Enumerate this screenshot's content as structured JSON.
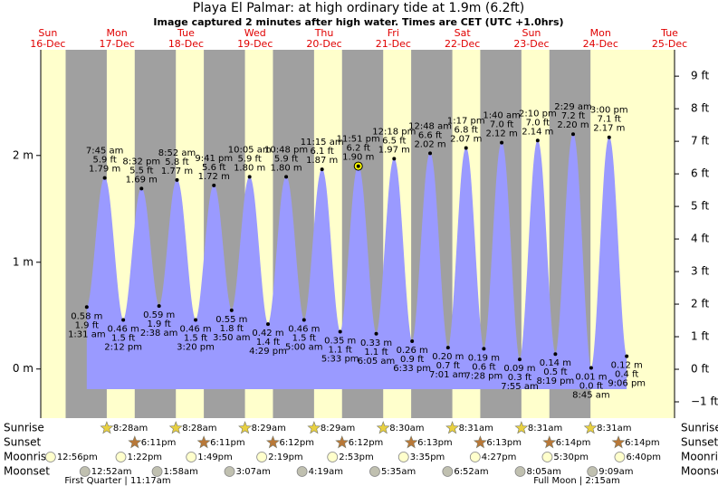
{
  "chart_data": {
    "type": "tide",
    "title": "Playa El Palmar: at high  ordinary tide at 1.9m (6.2ft)",
    "subtitle": "Image captured 2 minutes after high water. Times are CET (UTC +1.0hrs)",
    "ylim": [
      -0.46,
      2.99
    ],
    "yticks": [
      {
        "value": 0,
        "label": "0 m"
      },
      {
        "value": 1,
        "label": "1 m"
      },
      {
        "value": 2,
        "label": "2 m"
      }
    ],
    "y2lim": [
      -1.5,
      9.81
    ],
    "y2ticks": [
      {
        "value": -1,
        "label": "−1 ft"
      },
      {
        "value": 0,
        "label": "0 ft"
      },
      {
        "value": 1,
        "label": "1 ft"
      },
      {
        "value": 2,
        "label": "2 ft"
      },
      {
        "value": 3,
        "label": "3 ft"
      },
      {
        "value": 4,
        "label": "4 ft"
      },
      {
        "value": 5,
        "label": "5 ft"
      },
      {
        "value": 6,
        "label": "6 ft"
      },
      {
        "value": 7,
        "label": "7 ft"
      },
      {
        "value": 8,
        "label": "8 ft"
      },
      {
        "value": 9,
        "label": "9 ft"
      }
    ],
    "color": "#9a9aff",
    "row_labels": {
      "sunrise": "Sunrise",
      "sunset": "Sunset",
      "moonrise": "Moonrise",
      "moonset": "Moonset"
    },
    "moon_phases": [
      "First Quarter | 11:17am",
      "Full Moon | 2:15am"
    ],
    "days": [
      {
        "weekday": "Sun",
        "date": "16-Dec",
        "moonrise": "12:56pm"
      },
      {
        "weekday": "Mon",
        "date": "17-Dec",
        "sunrise": "8:28am",
        "sunset": "6:11pm",
        "moonrise": "1:22pm",
        "moonset": "12:52am",
        "tides": [
          {
            "time": "1:31 am",
            "ft_label": "1.9 ft",
            "value": 0.58,
            "value_label": "0.58 m"
          },
          {
            "time": "7:45 am",
            "ft_label": "5.9 ft",
            "value": 1.79,
            "value_label": "1.79 m"
          },
          {
            "time": "2:12 pm",
            "ft_label": "1.5 ft",
            "value": 0.46,
            "value_label": "0.46 m"
          },
          {
            "time": "8:32 pm",
            "ft_label": "5.5 ft",
            "value": 1.69,
            "value_label": "1.69 m"
          }
        ]
      },
      {
        "weekday": "Tue",
        "date": "18-Dec",
        "sunrise": "8:28am",
        "sunset": "6:11pm",
        "moonrise": "1:49pm",
        "moonset": "1:58am",
        "tides": [
          {
            "time": "2:38 am",
            "ft_label": "1.9 ft",
            "value": 0.59,
            "value_label": "0.59 m"
          },
          {
            "time": "8:52 am",
            "ft_label": "5.8 ft",
            "value": 1.77,
            "value_label": "1.77 m"
          },
          {
            "time": "3:20 pm",
            "ft_label": "1.5 ft",
            "value": 0.46,
            "value_label": "0.46 m"
          },
          {
            "time": "9:41 pm",
            "ft_label": "5.6 ft",
            "value": 1.72,
            "value_label": "1.72 m"
          }
        ]
      },
      {
        "weekday": "Wed",
        "date": "19-Dec",
        "sunrise": "8:29am",
        "sunset": "6:12pm",
        "moonrise": "2:19pm",
        "moonset": "3:07am",
        "tides": [
          {
            "time": "3:50 am",
            "ft_label": "1.8 ft",
            "value": 0.55,
            "value_label": "0.55 m"
          },
          {
            "time": "10:05 am",
            "ft_label": "5.9 ft",
            "value": 1.8,
            "value_label": "1.80 m"
          },
          {
            "time": "4:29 pm",
            "ft_label": "1.4 ft",
            "value": 0.42,
            "value_label": "0.42 m"
          },
          {
            "time": "10:48 pm",
            "ft_label": "5.9 ft",
            "value": 1.8,
            "value_label": "1.80 m"
          }
        ]
      },
      {
        "weekday": "Thu",
        "date": "20-Dec",
        "sunrise": "8:29am",
        "sunset": "6:12pm",
        "moonrise": "2:53pm",
        "moonset": "4:19am",
        "tides": [
          {
            "time": "5:00 am",
            "ft_label": "1.5 ft",
            "value": 0.46,
            "value_label": "0.46 m"
          },
          {
            "time": "11:15 am",
            "ft_label": "6.1 ft",
            "value": 1.87,
            "value_label": "1.87 m"
          },
          {
            "time": "5:33 pm",
            "ft_label": "1.1 ft",
            "value": 0.35,
            "value_label": "0.35 m"
          },
          {
            "time": "11:51 pm",
            "ft_label": "6.2 ft",
            "value": 1.9,
            "value_label": "1.90 m",
            "current": true
          }
        ]
      },
      {
        "weekday": "Fri",
        "date": "21-Dec",
        "sunrise": "8:30am",
        "sunset": "6:13pm",
        "moonrise": "3:35pm",
        "moonset": "5:35am",
        "tides": [
          {
            "time": "6:05 am",
            "ft_label": "1.1 ft",
            "value": 0.33,
            "value_label": "0.33 m"
          },
          {
            "time": "12:18 pm",
            "ft_label": "6.5 ft",
            "value": 1.97,
            "value_label": "1.97 m"
          },
          {
            "time": "6:33 pm",
            "ft_label": "0.9 ft",
            "value": 0.26,
            "value_label": "0.26 m"
          }
        ]
      },
      {
        "weekday": "Sat",
        "date": "22-Dec",
        "sunrise": "8:31am",
        "sunset": "6:13pm",
        "moonrise": "4:27pm",
        "moonset": "6:52am",
        "tides": [
          {
            "time": "12:48 am",
            "ft_label": "6.6 ft",
            "value": 2.02,
            "value_label": "2.02 m"
          },
          {
            "time": "7:01 am",
            "ft_label": "0.7 ft",
            "value": 0.2,
            "value_label": "0.20 m"
          },
          {
            "time": "1:17 pm",
            "ft_label": "6.8 ft",
            "value": 2.07,
            "value_label": "2.07 m"
          },
          {
            "time": "7:28 pm",
            "ft_label": "0.6 ft",
            "value": 0.19,
            "value_label": "0.19 m"
          }
        ]
      },
      {
        "weekday": "Sun",
        "date": "23-Dec",
        "sunrise": "8:31am",
        "sunset": "6:14pm",
        "moonrise": "5:30pm",
        "moonset": "8:05am",
        "tides": [
          {
            "time": "1:40 am",
            "ft_label": "7.0 ft",
            "value": 2.12,
            "value_label": "2.12 m"
          },
          {
            "time": "7:55 am",
            "ft_label": "0.3 ft",
            "value": 0.09,
            "value_label": "0.09 m"
          },
          {
            "time": "2:10 pm",
            "ft_label": "7.0 ft",
            "value": 2.14,
            "value_label": "2.14 m"
          },
          {
            "time": "8:19 pm",
            "ft_label": "0.5 ft",
            "value": 0.14,
            "value_label": "0.14 m"
          }
        ]
      },
      {
        "weekday": "Mon",
        "date": "24-Dec",
        "sunrise": "8:31am",
        "sunset": "6:14pm",
        "moonrise": "6:40pm",
        "moonset": "9:09am",
        "tides": [
          {
            "time": "2:29 am",
            "ft_label": "7.2 ft",
            "value": 2.2,
            "value_label": "2.20 m"
          },
          {
            "time": "8:45 am",
            "ft_label": "0.0 ft",
            "value": 0.01,
            "value_label": "0.01 m"
          },
          {
            "time": "3:00 pm",
            "ft_label": "7.1 ft",
            "value": 2.17,
            "value_label": "2.17 m"
          },
          {
            "time": "9:06 pm",
            "ft_label": "0.4 ft",
            "value": 0.12,
            "value_label": "0.12 m"
          }
        ]
      },
      {
        "weekday": "Tue",
        "date": "25-Dec"
      }
    ]
  }
}
